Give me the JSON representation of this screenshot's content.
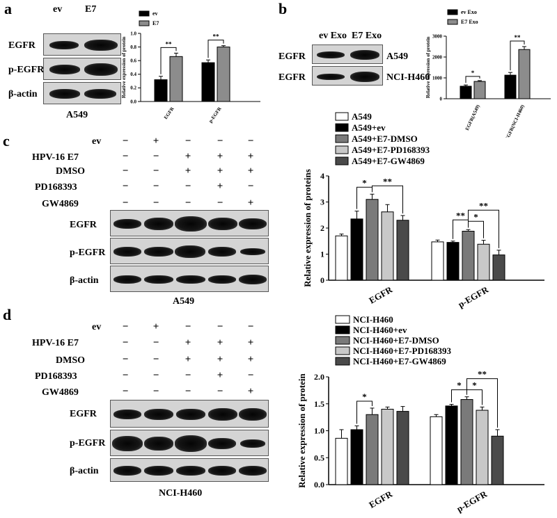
{
  "panels": {
    "a": {
      "label": "a",
      "lanes": [
        "ev",
        "E7"
      ],
      "rows": [
        "EGFR",
        "p-EGFR",
        "β-actin"
      ],
      "cell_line": "A549"
    },
    "b": {
      "label": "b",
      "lanes": [
        "ev Exo",
        "E7 Exo"
      ],
      "rows": [
        {
          "protein": "EGFR",
          "cell": "A549"
        },
        {
          "protein": "EGFR",
          "cell": "NCI-H460"
        }
      ]
    },
    "c": {
      "label": "c",
      "treatments": [
        "ev",
        "HPV-16 E7",
        "DMSO",
        "PD168393",
        "GW4869"
      ],
      "signs": [
        [
          "−",
          "+",
          "−",
          "−",
          "−"
        ],
        [
          "−",
          "−",
          "+",
          "+",
          "+"
        ],
        [
          "−",
          "−",
          "+",
          "+",
          "+"
        ],
        [
          "−",
          "−",
          "−",
          "+",
          "−"
        ],
        [
          "−",
          "−",
          "−",
          "−",
          "+"
        ]
      ],
      "rows": [
        "EGFR",
        "p-EGFR",
        "β-actin"
      ],
      "cell_line": "A549"
    },
    "d": {
      "label": "d",
      "treatments": [
        "ev",
        "HPV-16 E7",
        "DMSO",
        "PD168393",
        "GW4869"
      ],
      "signs": [
        [
          "−",
          "+",
          "−",
          "−",
          "−"
        ],
        [
          "−",
          "−",
          "+",
          "+",
          "+"
        ],
        [
          "−",
          "−",
          "+",
          "+",
          "+"
        ],
        [
          "−",
          "−",
          "−",
          "+",
          "−"
        ],
        [
          "−",
          "−",
          "−",
          "−",
          "+"
        ]
      ],
      "rows": [
        "EGFR",
        "p-EGFR",
        "β-actin"
      ],
      "cell_line": "NCI-H460"
    }
  },
  "chart_data": [
    {
      "id": "a",
      "type": "bar",
      "categories": [
        "EGFR",
        "p-EGFR"
      ],
      "series": [
        {
          "name": "ev",
          "color": "#000000",
          "values": [
            0.32,
            0.57
          ],
          "errors": [
            0.05,
            0.04
          ]
        },
        {
          "name": "E7",
          "color": "#8c8c8c",
          "values": [
            0.66,
            0.8
          ],
          "errors": [
            0.05,
            0.02
          ]
        }
      ],
      "ylabel": "Relative expression of protein",
      "ylim": [
        0,
        1.0
      ],
      "yticks": [
        "0.0",
        "0.2",
        "0.4",
        "0.6",
        "0.8",
        "1.0"
      ],
      "sig": [
        "**",
        "**"
      ],
      "legend": "top-left"
    },
    {
      "id": "b",
      "type": "bar",
      "categories": [
        "EGFR(A549)",
        "EGFR(NCI-H460)"
      ],
      "series": [
        {
          "name": "ev Exo",
          "color": "#000000",
          "values": [
            600,
            1130
          ],
          "errors": [
            60,
            130
          ]
        },
        {
          "name": "E7 Exo",
          "color": "#8c8c8c",
          "values": [
            830,
            2360
          ],
          "errors": [
            40,
            140
          ]
        }
      ],
      "ylabel": "Relative expression of protein",
      "ylim": [
        0,
        3000
      ],
      "yticks": [
        "0",
        "1000",
        "2000",
        "3000"
      ],
      "sig": [
        "*",
        "**"
      ],
      "legend": "top-left"
    },
    {
      "id": "c",
      "type": "bar",
      "categories": [
        "EGFR",
        "p-EGFR"
      ],
      "series": [
        {
          "name": "A549",
          "color": "#ffffff",
          "values": [
            1.7,
            1.47
          ],
          "errors": [
            0.07,
            0.07
          ]
        },
        {
          "name": "A549+ev",
          "color": "#000000",
          "values": [
            2.35,
            1.45
          ],
          "errors": [
            0.3,
            0.05
          ]
        },
        {
          "name": "A549+E7-DMSO",
          "color": "#7a7a7a",
          "values": [
            3.1,
            1.88
          ],
          "errors": [
            0.2,
            0.06
          ]
        },
        {
          "name": "A549+E7-PD168393",
          "color": "#c8c8c8",
          "values": [
            2.62,
            1.38
          ],
          "errors": [
            0.28,
            0.15
          ]
        },
        {
          "name": "A549+E7-GW4869",
          "color": "#4a4a4a",
          "values": [
            2.3,
            0.97
          ],
          "errors": [
            0.18,
            0.18
          ]
        }
      ],
      "ylabel": "Relative expression of proteins",
      "ylim": [
        0,
        4
      ],
      "yticks": [
        "0",
        "1",
        "2",
        "3",
        "4"
      ],
      "sig": [
        "*",
        "**",
        "**",
        "*",
        "**"
      ],
      "legend": "top"
    },
    {
      "id": "d",
      "type": "bar",
      "categories": [
        "EGFR",
        "p-EGFR"
      ],
      "series": [
        {
          "name": "NCI-H460",
          "color": "#ffffff",
          "values": [
            0.86,
            1.26
          ],
          "errors": [
            0.16,
            0.04
          ]
        },
        {
          "name": "NCI-H460+ev",
          "color": "#000000",
          "values": [
            1.02,
            1.46
          ],
          "errors": [
            0.07,
            0.03
          ]
        },
        {
          "name": "NCI-H460+E7-DMSO",
          "color": "#7a7a7a",
          "values": [
            1.3,
            1.58
          ],
          "errors": [
            0.12,
            0.05
          ]
        },
        {
          "name": "NCI-H460+E7-PD168393",
          "color": "#c8c8c8",
          "values": [
            1.4,
            1.38
          ],
          "errors": [
            0.04,
            0.06
          ]
        },
        {
          "name": "NCI-H460+E7-GW4869",
          "color": "#4a4a4a",
          "values": [
            1.36,
            0.9
          ],
          "errors": [
            0.09,
            0.12
          ]
        }
      ],
      "ylabel": "Relative expression of protein",
      "ylim": [
        0,
        2.0
      ],
      "yticks": [
        "0.0",
        "0.5",
        "1.0",
        "1.5",
        "2.0"
      ],
      "sig": [
        "*",
        "*",
        "*",
        "**"
      ],
      "legend": "top"
    }
  ]
}
